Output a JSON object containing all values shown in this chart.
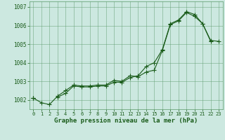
{
  "x": [
    0,
    1,
    2,
    3,
    4,
    5,
    6,
    7,
    8,
    9,
    10,
    11,
    12,
    13,
    14,
    15,
    16,
    17,
    18,
    19,
    20,
    21,
    22,
    23
  ],
  "series1": [
    1002.1,
    1001.85,
    1001.75,
    1002.2,
    1002.5,
    1002.8,
    1002.75,
    1002.75,
    1002.8,
    1002.8,
    1003.05,
    1003.0,
    1003.3,
    1003.25,
    1003.5,
    1003.6,
    1004.65,
    1006.05,
    1006.25,
    1006.7,
    1006.5,
    1006.1,
    1005.15,
    null
  ],
  "series2": [
    1002.1,
    null,
    null,
    1002.15,
    1002.35,
    1002.75,
    1002.7,
    1002.7,
    1002.75,
    1002.75,
    1002.95,
    1002.95,
    1003.2,
    1003.3,
    1003.8,
    1004.0,
    1004.7,
    1006.1,
    1006.3,
    1006.75,
    null,
    null,
    null,
    null
  ],
  "series3": [
    1002.1,
    null,
    null,
    null,
    null,
    null,
    null,
    null,
    null,
    null,
    null,
    null,
    null,
    null,
    null,
    null,
    null,
    null,
    null,
    1006.75,
    1006.6,
    1006.1,
    1005.2,
    1005.15
  ],
  "bg_color": "#cce8e0",
  "grid_color": "#5a9a6a",
  "line_color": "#1a5c1a",
  "marker_color": "#1a5c1a",
  "text_color": "#1a5c1a",
  "ylim": [
    1001.5,
    1007.3
  ],
  "yticks": [
    1002,
    1003,
    1004,
    1005,
    1006,
    1007
  ],
  "xticks": [
    0,
    1,
    2,
    3,
    4,
    5,
    6,
    7,
    8,
    9,
    10,
    11,
    12,
    13,
    14,
    15,
    16,
    17,
    18,
    19,
    20,
    21,
    22,
    23
  ],
  "xlabel": "Graphe pression niveau de la mer (hPa)",
  "lw": 0.8,
  "ms": 2.8
}
